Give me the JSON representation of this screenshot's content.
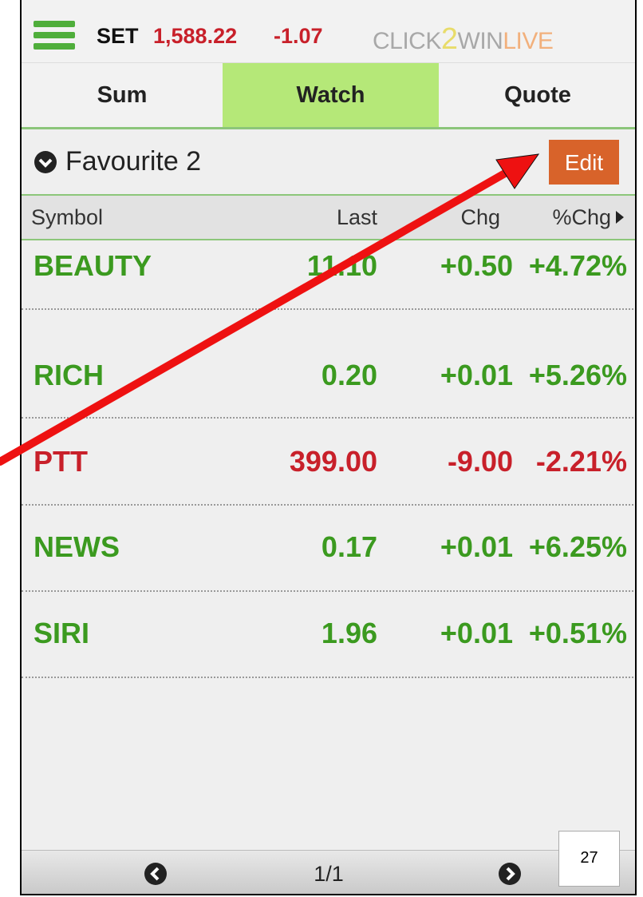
{
  "header": {
    "index_name": "SET",
    "index_value": "1,588.22",
    "index_change": "-1.07",
    "logo": [
      "CLICK",
      "2",
      "WIN",
      "LIVE"
    ]
  },
  "tabs": {
    "items": [
      "Sum",
      "Watch",
      "Quote"
    ],
    "active": 1
  },
  "list": {
    "title": "Favourite 2",
    "edit": "Edit",
    "columns": [
      "Symbol",
      "Last",
      "Chg",
      "%Chg"
    ],
    "rows": [
      {
        "symbol": "BEAUTY",
        "last": "11.10",
        "chg": "+0.50",
        "pct": "+4.72%",
        "color": "#3b9a1f"
      },
      {
        "symbol": "RICH",
        "last": "0.20",
        "chg": "+0.01",
        "pct": "+5.26%",
        "color": "#3b9a1f"
      },
      {
        "symbol": "PTT",
        "last": "399.00",
        "chg": "-9.00",
        "pct": "-2.21%",
        "color": "#c8202a"
      },
      {
        "symbol": "NEWS",
        "last": "0.17",
        "chg": "+0.01",
        "pct": "+6.25%",
        "color": "#3b9a1f"
      },
      {
        "symbol": "SIRI",
        "last": "1.96",
        "chg": "+0.01",
        "pct": "+0.51%",
        "color": "#3b9a1f"
      }
    ]
  },
  "pager": "1/1",
  "page_number": "27"
}
